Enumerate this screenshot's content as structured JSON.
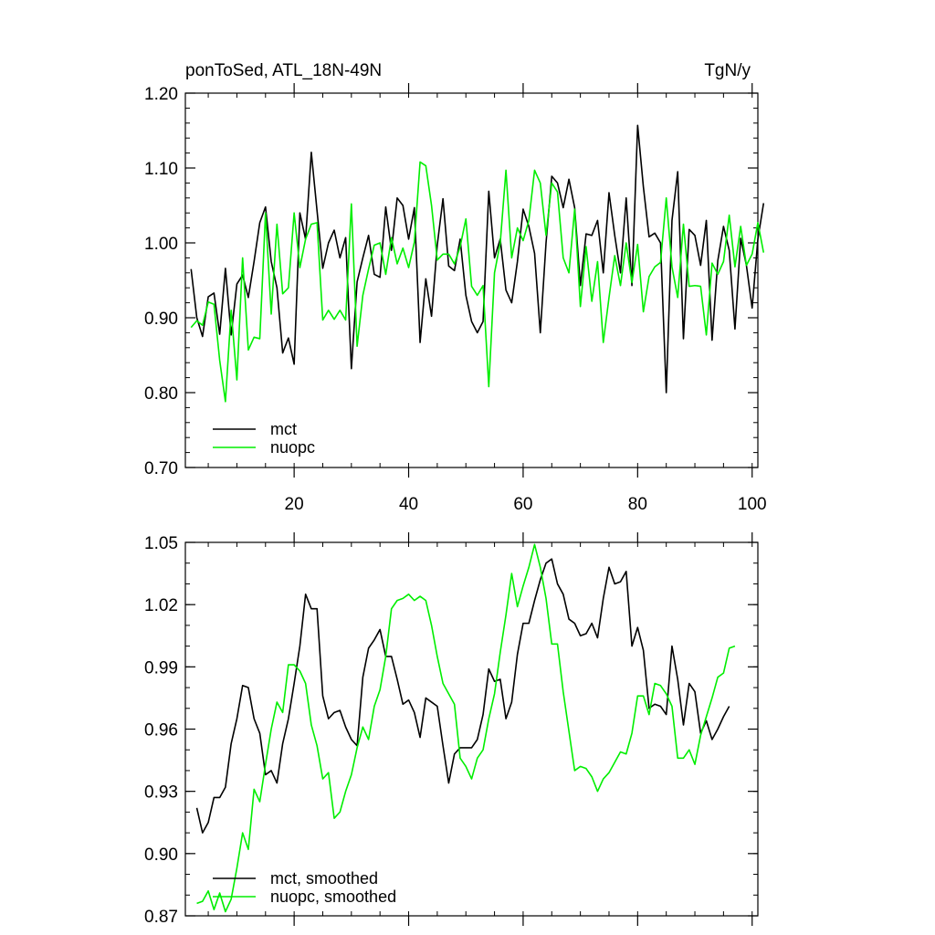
{
  "chart_data": [
    {
      "type": "line",
      "title_left": "ponToSed, ATL_18N-49N",
      "title_right": "TgN/y",
      "xlim": [
        1,
        101
      ],
      "ylim": [
        0.7,
        1.2
      ],
      "xticks": [
        20,
        40,
        60,
        80,
        100
      ],
      "xtick_labels": [
        "20",
        "40",
        "60",
        "80",
        "100"
      ],
      "yticks": [
        0.7,
        0.8,
        0.9,
        1.0,
        1.1,
        1.2
      ],
      "ytick_labels": [
        "0.70",
        "0.80",
        "0.90",
        "1.00",
        "1.10",
        "1.20"
      ],
      "legend_position": "bottom-left",
      "series": [
        {
          "name": "mct",
          "color": "#000000",
          "x_start": 2,
          "values": [
            0.965,
            0.9,
            0.875,
            0.928,
            0.933,
            0.878,
            0.966,
            0.877,
            0.945,
            0.957,
            0.927,
            0.975,
            1.027,
            1.048,
            0.975,
            0.94,
            0.853,
            0.873,
            0.838,
            1.04,
            1.005,
            1.121,
            1.043,
            0.966,
            1.0,
            1.017,
            0.98,
            1.007,
            0.832,
            0.948,
            0.98,
            1.01,
            0.958,
            0.954,
            1.048,
            0.99,
            1.06,
            1.05,
            1.005,
            1.047,
            0.867,
            0.952,
            0.902,
            0.997,
            1.059,
            0.969,
            0.963,
            1.005,
            0.93,
            0.895,
            0.88,
            0.895,
            1.069,
            0.98,
            1.005,
            0.937,
            0.92,
            0.975,
            1.045,
            1.022,
            0.986,
            0.88,
            1.0,
            1.089,
            1.08,
            1.047,
            1.085,
            1.047,
            0.943,
            1.012,
            1.01,
            1.03,
            0.96,
            1.067,
            1.01,
            0.96,
            1.06,
            0.943,
            1.157,
            1.075,
            1.008,
            1.013,
            1.0,
            0.8,
            1.03,
            1.095,
            0.872,
            1.018,
            1.01,
            0.97,
            1.03,
            0.87,
            0.976,
            1.022,
            0.99,
            0.885,
            1.006,
            0.97,
            0.913,
            1.005,
            1.053
          ]
        },
        {
          "name": "nuopc",
          "color": "#00ee00",
          "x_start": 2,
          "values": [
            0.887,
            0.896,
            0.89,
            0.921,
            0.918,
            0.843,
            0.788,
            0.91,
            0.817,
            0.98,
            0.857,
            0.874,
            0.872,
            1.04,
            0.905,
            1.025,
            0.932,
            0.94,
            1.04,
            0.967,
            1.005,
            1.025,
            1.027,
            0.897,
            0.91,
            0.898,
            0.91,
            0.897,
            1.052,
            0.862,
            0.93,
            0.965,
            0.997,
            1.0,
            0.958,
            1.007,
            0.972,
            0.993,
            0.967,
            1.001,
            1.108,
            1.103,
            1.05,
            0.977,
            0.985,
            0.985,
            0.972,
            0.995,
            1.032,
            0.942,
            0.93,
            0.943,
            0.808,
            0.96,
            1.0,
            1.097,
            0.98,
            1.02,
            1.003,
            1.03,
            1.097,
            1.08,
            1.01,
            1.08,
            1.068,
            0.98,
            0.96,
            1.045,
            0.915,
            0.995,
            0.922,
            0.975,
            0.867,
            0.927,
            0.983,
            0.943,
            1.0,
            0.947,
            0.998,
            0.908,
            0.955,
            0.968,
            0.974,
            1.06,
            0.968,
            0.927,
            1.025,
            0.942,
            0.943,
            0.942,
            0.877,
            0.973,
            0.958,
            0.975,
            1.037,
            0.968,
            1.022,
            0.97,
            0.985,
            1.027,
            0.987
          ]
        }
      ]
    },
    {
      "type": "line",
      "xlim": [
        1,
        101
      ],
      "ylim": [
        0.87,
        1.05
      ],
      "xticks": [
        20,
        40,
        60,
        80,
        100
      ],
      "yticks": [
        0.87,
        0.9,
        0.93,
        0.96,
        0.99,
        1.02,
        1.05
      ],
      "ytick_labels": [
        "0.87",
        "0.90",
        "0.93",
        "0.96",
        "0.99",
        "1.02",
        "1.05"
      ],
      "legend_position": "bottom-left",
      "series": [
        {
          "name": "mct, smoothed",
          "color": "#000000",
          "x_start": 3,
          "values": [
            0.922,
            0.91,
            0.915,
            0.927,
            0.927,
            0.932,
            0.953,
            0.965,
            0.981,
            0.98,
            0.965,
            0.958,
            0.938,
            0.94,
            0.934,
            0.953,
            0.965,
            0.982,
            1.0,
            1.025,
            1.018,
            1.018,
            0.976,
            0.965,
            0.968,
            0.969,
            0.961,
            0.955,
            0.952,
            0.985,
            0.999,
            1.003,
            1.008,
            0.995,
            0.995,
            0.984,
            0.972,
            0.974,
            0.968,
            0.956,
            0.975,
            0.973,
            0.971,
            0.952,
            0.934,
            0.948,
            0.951,
            0.951,
            0.951,
            0.955,
            0.967,
            0.989,
            0.983,
            0.984,
            0.965,
            0.973,
            0.996,
            1.011,
            1.011,
            1.022,
            1.032,
            1.04,
            1.042,
            1.03,
            1.025,
            1.013,
            1.011,
            1.005,
            1.006,
            1.011,
            1.004,
            1.023,
            1.038,
            1.03,
            1.031,
            1.036,
            1.0,
            1.009,
            0.998,
            0.97,
            0.972,
            0.971,
            0.967,
            1.0,
            0.984,
            0.962,
            0.982,
            0.978,
            0.958,
            0.964,
            0.955,
            0.96,
            0.966,
            0.971
          ]
        },
        {
          "name": "nuopc, smoothed",
          "color": "#00ee00",
          "x_start": 3,
          "values": [
            0.876,
            0.877,
            0.882,
            0.873,
            0.881,
            0.872,
            0.878,
            0.893,
            0.91,
            0.902,
            0.931,
            0.925,
            0.943,
            0.96,
            0.973,
            0.968,
            0.991,
            0.991,
            0.988,
            0.982,
            0.962,
            0.952,
            0.936,
            0.939,
            0.917,
            0.92,
            0.93,
            0.938,
            0.951,
            0.961,
            0.955,
            0.971,
            0.979,
            0.995,
            1.018,
            1.022,
            1.023,
            1.025,
            1.022,
            1.024,
            1.022,
            1.01,
            0.995,
            0.982,
            0.977,
            0.972,
            0.946,
            0.942,
            0.936,
            0.946,
            0.95,
            0.965,
            0.977,
            0.997,
            1.015,
            1.035,
            1.019,
            1.029,
            1.038,
            1.049,
            1.038,
            1.023,
            1.001,
            1.001,
            0.978,
            0.959,
            0.94,
            0.942,
            0.941,
            0.937,
            0.93,
            0.936,
            0.939,
            0.944,
            0.949,
            0.948,
            0.958,
            0.976,
            0.976,
            0.967,
            0.982,
            0.981,
            0.977,
            0.971,
            0.946,
            0.946,
            0.95,
            0.943,
            0.957,
            0.966,
            0.975,
            0.985,
            0.987,
            0.999,
            1.0
          ]
        }
      ]
    }
  ]
}
